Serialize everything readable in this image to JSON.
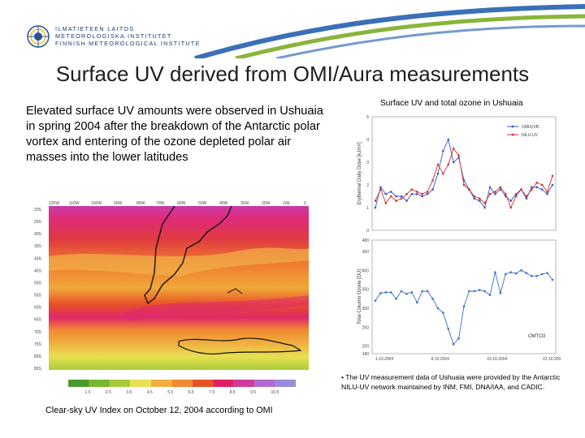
{
  "header": {
    "logo_lines": [
      "ILMATIETEEN LAITOS",
      "METEOROLOGISKA INSTITUTET",
      "FINNISH METEOROLOGICAL INSTITUTE"
    ]
  },
  "title": "Surface UV derived from OMI/Aura measurements",
  "body_text": "Elevated surface UV amounts were observed in Ushuaia in spring 2004 after the breakdown of the Antarctic polar vortex and entering of the ozone depleted polar air masses into the lower latitudes",
  "map": {
    "top_labels": [
      "120W",
      "110W",
      "100W",
      "90W",
      "80W",
      "70W",
      "60W",
      "50W",
      "40W",
      "30W",
      "20W",
      "10E",
      "0"
    ],
    "lat_labels": [
      "20S",
      "25S",
      "30S",
      "35S",
      "40S",
      "45S",
      "50S",
      "55S",
      "60S",
      "65S",
      "70S",
      "75S",
      "80S",
      "85S"
    ],
    "colorbar_ticks": [
      "1.5",
      "2.5",
      "3.5",
      "4.5",
      "5.5",
      "6.5",
      "7.5",
      "8.5",
      "9.5",
      "10.5"
    ],
    "colorbar_colors": [
      "#4a9c2a",
      "#78b830",
      "#a8cc38",
      "#e8e050",
      "#f0b040",
      "#f08a30",
      "#e85028",
      "#e02060",
      "#d03a98",
      "#b06ad0",
      "#9a8cdc"
    ],
    "caption": "Clear-sky UV Index on October 12, 2004 according to OMI"
  },
  "chart_title": "Surface UV and total ozone in Ushuaia",
  "chart_data": [
    {
      "type": "line",
      "ylabel": "Erythemal Daily Dose [kJ/m²]",
      "ylim": [
        0,
        5
      ],
      "yticks": [
        "0",
        "1",
        "2",
        "3",
        "4",
        "5"
      ],
      "series": [
        {
          "name": "OMI/UVB",
          "color": "#3a55c8",
          "values": [
            1.0,
            1.9,
            1.6,
            1.7,
            1.5,
            1.5,
            1.3,
            1.6,
            1.6,
            1.5,
            1.6,
            1.8,
            2.5,
            3.5,
            4.0,
            3.0,
            3.2,
            2.2,
            1.8,
            1.4,
            1.3,
            1.0,
            1.9,
            1.6,
            1.8,
            1.5,
            1.3,
            1.6,
            1.8,
            1.4,
            1.9,
            1.9,
            1.8,
            1.6,
            2.0
          ]
        },
        {
          "name": "NILU-UV",
          "color": "#d03030",
          "values": [
            1.3,
            1.8,
            1.2,
            1.5,
            1.3,
            1.4,
            1.6,
            1.8,
            1.7,
            1.6,
            1.7,
            2.2,
            2.9,
            2.5,
            2.9,
            3.6,
            3.3,
            2.0,
            1.8,
            1.5,
            1.4,
            1.2,
            1.6,
            1.7,
            1.9,
            1.6,
            1.0,
            1.5,
            1.8,
            1.5,
            1.8,
            2.1,
            2.0,
            1.7,
            2.4
          ]
        }
      ]
    },
    {
      "type": "line",
      "ylabel": "Total Column Ozone [DU]",
      "ylim": [
        180,
        480
      ],
      "yticks": [
        "180",
        "200",
        "250",
        "300",
        "350",
        "400",
        "450",
        "480"
      ],
      "x_tick_labels": [
        "1.10.2004",
        "8.10.2004",
        "15.10.2004",
        "22.10.2004"
      ],
      "series": [
        {
          "name": "OMTO3",
          "color": "#3a70c0",
          "values": [
            320,
            340,
            342,
            342,
            325,
            345,
            338,
            342,
            315,
            345,
            345,
            325,
            300,
            288,
            245,
            205,
            220,
            305,
            345,
            345,
            348,
            345,
            335,
            395,
            340,
            390,
            395,
            392,
            400,
            393,
            385,
            385,
            390,
            393,
            375
          ]
        }
      ],
      "annotation": "OMTO3"
    }
  ],
  "note": "• The UV measurement data of Ushuaia were provided by the Antarctic NILU-UV network maintained by INM, FMI, DNA/IAA, and CADIC."
}
